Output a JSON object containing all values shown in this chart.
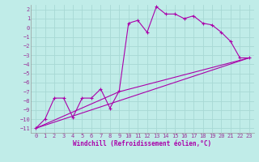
{
  "xlabel": "Windchill (Refroidissement éolien,°C)",
  "bg_color": "#c0ece8",
  "grid_color": "#a8d8d4",
  "line_color": "#aa00aa",
  "xlim": [
    -0.5,
    23.5
  ],
  "ylim": [
    -11.5,
    2.5
  ],
  "yticks": [
    2,
    1,
    0,
    -1,
    -2,
    -3,
    -4,
    -5,
    -6,
    -7,
    -8,
    -9,
    -10,
    -11
  ],
  "xticks": [
    0,
    1,
    2,
    3,
    4,
    5,
    6,
    7,
    8,
    9,
    10,
    11,
    12,
    13,
    14,
    15,
    16,
    17,
    18,
    19,
    20,
    21,
    22,
    23
  ],
  "series1_x": [
    0,
    1,
    2,
    3,
    4,
    5,
    6,
    7,
    8,
    9,
    10,
    11,
    12,
    13,
    14,
    15,
    16,
    17,
    18,
    19,
    20,
    21,
    22,
    23
  ],
  "series1_y": [
    -11,
    -10,
    -7.7,
    -7.7,
    -9.8,
    -7.7,
    -7.7,
    -6.7,
    -8.8,
    -6.9,
    0.5,
    0.8,
    -0.5,
    2.3,
    1.5,
    1.5,
    1.0,
    1.3,
    0.5,
    0.3,
    -0.5,
    -1.5,
    -3.3,
    -3.3
  ],
  "series2_x": [
    0,
    23
  ],
  "series2_y": [
    -11,
    -3.3
  ],
  "series3_x": [
    0,
    9,
    23
  ],
  "series3_y": [
    -11,
    -7.0,
    -3.3
  ],
  "tick_color": "#993399",
  "label_color": "#aa00aa",
  "tick_fontsize": 5,
  "xlabel_fontsize": 5.5
}
